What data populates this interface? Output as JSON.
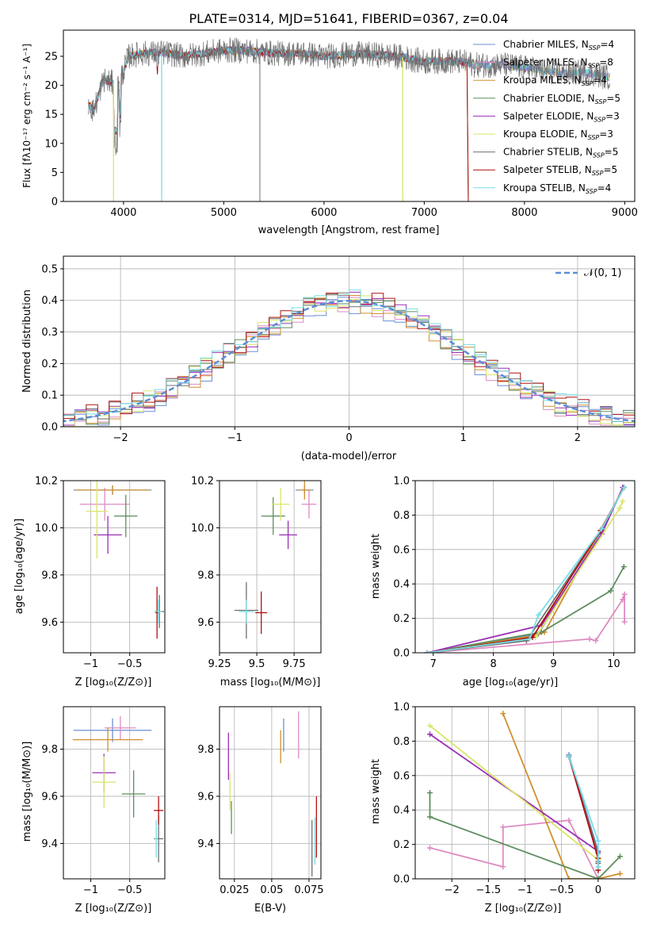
{
  "figure": {
    "title": "PLATE=0314, MJD=51641, FIBERID=0367, z=0.04"
  },
  "series_colors": [
    "#6b8fd6",
    "#de8bc2",
    "#d0902e",
    "#5e8e5e",
    "#9b2fb5",
    "#d9e56a",
    "#707070",
    "#b01010",
    "#78dde3"
  ],
  "chart_data": [
    {
      "id": "spectrum",
      "type": "line",
      "title": "PLATE=0314, MJD=51641, FIBERID=0367, z=0.04",
      "xlabel": "wavelength [Angstrom, rest frame]",
      "ylabel": "Flux [fλ10⁻¹⁷ erg cm⁻² s⁻¹ A⁻¹]",
      "xlim": [
        3400,
        9100
      ],
      "ylim": [
        0,
        29.5
      ],
      "xticks": [
        4000,
        5000,
        6000,
        7000,
        8000,
        9000
      ],
      "yticks": [
        0,
        5,
        10,
        15,
        20,
        25
      ],
      "grid": false,
      "legend_position": "upper right",
      "legend": [
        "Chabrier MILES, N_SSP=4",
        "Salpeter MILES, N_SSP=8",
        "Kroupa MILES, N_SSP=4",
        "Chabrier ELODIE, N_SSP=5",
        "Salpeter ELODIE, N_SSP=3",
        "Kroupa ELODIE, N_SSP=3",
        "Chabrier STELIB, N_SSP=5",
        "Salpeter STELIB, N_SSP=5",
        "Kroupa STELIB, N_SSP=4"
      ],
      "continuum": [
        [
          3650,
          17
        ],
        [
          3700,
          15.5
        ],
        [
          3800,
          21
        ],
        [
          3950,
          20
        ],
        [
          4050,
          25
        ],
        [
          4200,
          25.5
        ],
        [
          4400,
          25.6
        ],
        [
          4600,
          25
        ],
        [
          4800,
          25.5
        ],
        [
          5000,
          26
        ],
        [
          5200,
          26
        ],
        [
          5500,
          25.5
        ],
        [
          5800,
          25.5
        ],
        [
          6000,
          25
        ],
        [
          6300,
          25.4
        ],
        [
          6600,
          25.2
        ],
        [
          6800,
          24.8
        ],
        [
          7000,
          24
        ],
        [
          7200,
          24.2
        ],
        [
          7400,
          24
        ],
        [
          7500,
          23.5
        ],
        [
          7800,
          23.5
        ],
        [
          8000,
          23
        ],
        [
          8200,
          22.5
        ],
        [
          8400,
          22
        ],
        [
          8600,
          22.3
        ],
        [
          8800,
          21.5
        ]
      ]
    },
    {
      "id": "residuals",
      "type": "histogram",
      "xlabel": "(data-model)/error",
      "ylabel": "Normed distribution",
      "xlim": [
        -2.5,
        2.5
      ],
      "ylim": [
        0,
        0.54
      ],
      "xticks": [
        -2,
        -1,
        0,
        1,
        2
      ],
      "yticks": [
        0.0,
        0.1,
        0.2,
        0.3,
        0.4,
        0.5
      ],
      "grid": true,
      "legend_position": "upper right",
      "legend": [
        "𝒩(0, 1)"
      ],
      "reference_curve": {
        "mean": 0,
        "sigma": 1,
        "color": "#5b8ed6"
      }
    },
    {
      "id": "age-vs-Z",
      "type": "errorbar",
      "xlabel": "Z [log₁₀(Z/Z⊙)]",
      "ylabel": "age  [log₁₀(age/yr)]",
      "xlim": [
        -1.35,
        -0.05
      ],
      "ylim": [
        9.47,
        10.2
      ],
      "xticks": [
        -1.0,
        -0.5
      ],
      "yticks": [
        9.6,
        9.8,
        10.0,
        10.2
      ],
      "grid": true,
      "points": [
        {
          "x": -0.72,
          "y": 10.16,
          "xerr": 0.5,
          "yerr": 0.02
        },
        {
          "x": -0.82,
          "y": 10.1,
          "xerr": 0.32,
          "yerr": 0.07
        },
        {
          "x": -0.72,
          "y": 10.16,
          "xerr": 0.48,
          "yerr": 0.02
        },
        {
          "x": -0.55,
          "y": 10.05,
          "xerr": 0.15,
          "yerr": 0.09
        },
        {
          "x": -0.78,
          "y": 9.97,
          "xerr": 0.18,
          "yerr": 0.08
        },
        {
          "x": -0.92,
          "y": 10.07,
          "xerr": 0.14,
          "yerr": 0.2
        },
        {
          "x": -0.12,
          "y": 9.645,
          "xerr": 0.06,
          "yerr": 0.07
        },
        {
          "x": -0.15,
          "y": 9.64,
          "xerr": 0.02,
          "yerr": 0.11
        },
        {
          "x": -0.13,
          "y": 9.645,
          "xerr": 0.05,
          "yerr": 0.05
        }
      ]
    },
    {
      "id": "age-vs-mass",
      "type": "errorbar",
      "xlabel": "mass [log₁₀(M/M⊙)]",
      "ylabel": "",
      "xlim": [
        9.25,
        9.93
      ],
      "ylim": [
        9.47,
        10.2
      ],
      "xticks": [
        9.25,
        9.5,
        9.75
      ],
      "yticks": [
        9.6,
        9.8,
        10.0,
        10.2
      ],
      "grid": true,
      "points": [
        {
          "x": 9.82,
          "y": 10.16,
          "xerr": 0.06,
          "yerr": 0.02
        },
        {
          "x": 9.85,
          "y": 10.1,
          "xerr": 0.05,
          "yerr": 0.06
        },
        {
          "x": 9.82,
          "y": 10.16,
          "xerr": 0.04,
          "yerr": 0.04
        },
        {
          "x": 9.61,
          "y": 10.05,
          "xerr": 0.08,
          "yerr": 0.08
        },
        {
          "x": 9.71,
          "y": 9.97,
          "xerr": 0.06,
          "yerr": 0.06
        },
        {
          "x": 9.66,
          "y": 10.1,
          "xerr": 0.06,
          "yerr": 0.07
        },
        {
          "x": 9.43,
          "y": 9.65,
          "xerr": 0.08,
          "yerr": 0.12
        },
        {
          "x": 9.53,
          "y": 9.64,
          "xerr": 0.04,
          "yerr": 0.09
        },
        {
          "x": 9.43,
          "y": 9.645,
          "xerr": 0.05,
          "yerr": 0.05
        }
      ]
    },
    {
      "id": "massweight-vs-age",
      "type": "line",
      "xlabel": "age  [log₁₀(age/yr)]",
      "ylabel": "mass weight",
      "xlim": [
        6.7,
        10.35
      ],
      "ylim": [
        0,
        1.0
      ],
      "xticks": [
        7,
        8,
        9,
        10
      ],
      "yticks": [
        0.0,
        0.2,
        0.4,
        0.6,
        0.8,
        1.0
      ],
      "grid": true,
      "series": [
        {
          "points": [
            [
              6.9,
              0.0
            ],
            [
              8.75,
              0.11
            ],
            [
              9.8,
              0.71
            ],
            [
              10.17,
              0.96
            ]
          ]
        },
        {
          "points": [
            [
              6.9,
              0.0
            ],
            [
              9.6,
              0.08
            ],
            [
              9.7,
              0.07
            ],
            [
              10.15,
              0.31
            ],
            [
              10.18,
              0.34
            ],
            [
              10.18,
              0.18
            ]
          ]
        },
        {
          "points": [
            [
              6.9,
              0.0
            ],
            [
              8.7,
              0.1
            ],
            [
              8.85,
              0.12
            ],
            [
              10.17,
              0.96
            ]
          ]
        },
        {
          "points": [
            [
              6.9,
              0.0
            ],
            [
              8.8,
              0.12
            ],
            [
              9.95,
              0.36
            ],
            [
              10.17,
              0.5
            ]
          ]
        },
        {
          "points": [
            [
              6.9,
              0.0
            ],
            [
              8.8,
              0.16
            ],
            [
              9.8,
              0.69
            ],
            [
              10.15,
              0.96
            ]
          ]
        },
        {
          "points": [
            [
              6.9,
              0.0
            ],
            [
              8.7,
              0.09
            ],
            [
              10.1,
              0.84
            ],
            [
              10.15,
              0.88
            ]
          ]
        },
        {
          "points": [
            [
              6.9,
              0.0
            ],
            [
              8.55,
              0.07
            ],
            [
              9.8,
              0.72
            ],
            [
              10.17,
              0.96
            ]
          ]
        },
        {
          "points": [
            [
              6.9,
              0.0
            ],
            [
              8.65,
              0.09
            ],
            [
              9.78,
              0.71
            ],
            [
              10.17,
              0.96
            ]
          ]
        },
        {
          "points": [
            [
              6.9,
              0.0
            ],
            [
              8.6,
              0.08
            ],
            [
              8.75,
              0.22
            ],
            [
              9.8,
              0.72
            ],
            [
              10.17,
              0.96
            ]
          ]
        }
      ]
    },
    {
      "id": "mass-vs-Z",
      "type": "errorbar",
      "xlabel": "Z [log₁₀(Z/Z⊙)]",
      "ylabel": "mass [log₁₀(M/M⊙)]",
      "xlim": [
        -1.35,
        -0.05
      ],
      "ylim": [
        9.25,
        9.98
      ],
      "xticks": [
        -1.0,
        -0.5
      ],
      "yticks": [
        9.4,
        9.6,
        9.8
      ],
      "grid": true,
      "points": [
        {
          "x": -0.72,
          "y": 9.88,
          "xerr": 0.5,
          "yerr": 0.05
        },
        {
          "x": -0.62,
          "y": 9.89,
          "xerr": 0.2,
          "yerr": 0.05
        },
        {
          "x": -0.78,
          "y": 9.84,
          "xerr": 0.45,
          "yerr": 0.05
        },
        {
          "x": -0.45,
          "y": 9.61,
          "xerr": 0.15,
          "yerr": 0.1
        },
        {
          "x": -0.83,
          "y": 9.7,
          "xerr": 0.15,
          "yerr": 0.08
        },
        {
          "x": -0.83,
          "y": 9.66,
          "xerr": 0.15,
          "yerr": 0.11
        },
        {
          "x": -0.13,
          "y": 9.42,
          "xerr": 0.06,
          "yerr": 0.1
        },
        {
          "x": -0.13,
          "y": 9.54,
          "xerr": 0.06,
          "yerr": 0.06
        },
        {
          "x": -0.16,
          "y": 9.42,
          "xerr": 0.02,
          "yerr": 0.08
        }
      ]
    },
    {
      "id": "mass-vs-EBV",
      "type": "errorbar",
      "xlabel": "E(B-V)",
      "ylabel": "",
      "xlim": [
        0.015,
        0.083
      ],
      "ylim": [
        9.25,
        9.98
      ],
      "xticks": [
        0.025,
        0.05,
        0.075
      ],
      "yticks": [
        9.4,
        9.6,
        9.8
      ],
      "grid": true,
      "points": [
        {
          "x": 0.058,
          "y": 9.86,
          "xerr": 0,
          "yerr": 0.07
        },
        {
          "x": 0.068,
          "y": 9.86,
          "xerr": 0,
          "yerr": 0.1
        },
        {
          "x": 0.056,
          "y": 9.81,
          "xerr": 0,
          "yerr": 0.07
        },
        {
          "x": 0.023,
          "y": 9.51,
          "xerr": 0,
          "yerr": 0.07
        },
        {
          "x": 0.021,
          "y": 9.77,
          "xerr": 0,
          "yerr": 0.1
        },
        {
          "x": 0.022,
          "y": 9.62,
          "xerr": 0,
          "yerr": 0.08
        },
        {
          "x": 0.077,
          "y": 9.38,
          "xerr": 0,
          "yerr": 0.12
        },
        {
          "x": 0.08,
          "y": 9.47,
          "xerr": 0,
          "yerr": 0.13
        },
        {
          "x": 0.079,
          "y": 9.41,
          "xerr": 0,
          "yerr": 0.1
        }
      ]
    },
    {
      "id": "massweight-vs-Z",
      "type": "line",
      "xlabel": "Z [log₁₀(Z/Z⊙)]",
      "ylabel": "mass weight",
      "xlim": [
        -2.5,
        0.5
      ],
      "ylim": [
        0,
        1.0
      ],
      "xticks": [
        -2.0,
        -1.5,
        -1.0,
        -0.5,
        0.0
      ],
      "yticks": [
        0.0,
        0.2,
        0.4,
        0.6,
        0.8,
        1.0
      ],
      "grid": true,
      "series": [
        {
          "points": [
            [
              -0.4,
              0.72
            ],
            [
              0.0,
              0.16
            ],
            [
              0.0,
              0.1
            ]
          ]
        },
        {
          "points": [
            [
              -2.3,
              0.18
            ],
            [
              -1.3,
              0.07
            ],
            [
              -1.3,
              0.3
            ],
            [
              -0.4,
              0.34
            ],
            [
              0.0,
              0.0
            ]
          ]
        },
        {
          "points": [
            [
              -1.3,
              0.96
            ],
            [
              -0.4,
              0.0
            ],
            [
              0.0,
              0.0
            ],
            [
              0.3,
              0.03
            ]
          ]
        },
        {
          "points": [
            [
              -2.3,
              0.5
            ],
            [
              -2.3,
              0.36
            ],
            [
              0.0,
              0.0
            ],
            [
              0.3,
              0.13
            ]
          ]
        },
        {
          "points": [
            [
              -2.3,
              0.84
            ],
            [
              0.0,
              0.16
            ]
          ]
        },
        {
          "points": [
            [
              -2.3,
              0.89
            ],
            [
              0.0,
              0.11
            ]
          ]
        },
        {
          "points": [
            [
              -0.4,
              0.71
            ],
            [
              0.0,
              0.15
            ],
            [
              0.0,
              0.09
            ]
          ]
        },
        {
          "points": [
            [
              -0.4,
              0.71
            ],
            [
              0.0,
              0.12
            ],
            [
              0.0,
              0.05
            ]
          ]
        },
        {
          "points": [
            [
              -0.4,
              0.71
            ],
            [
              0.0,
              0.22
            ],
            [
              0.0,
              0.07
            ]
          ]
        }
      ]
    }
  ]
}
